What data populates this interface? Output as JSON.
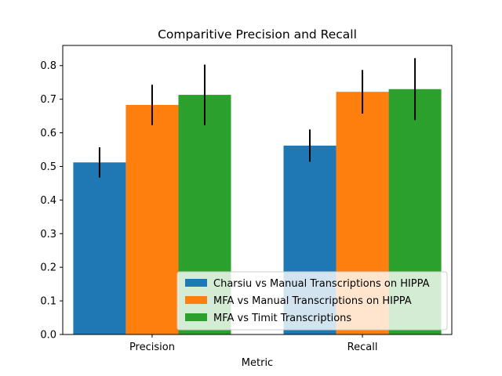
{
  "chart_data": {
    "type": "bar",
    "title": "Comparitive Precision and Recall",
    "xlabel": "Metric",
    "ylabel": "",
    "categories": [
      "Precision",
      "Recall"
    ],
    "ylim": [
      0,
      0.86
    ],
    "yticks": [
      0.0,
      0.1,
      0.2,
      0.3,
      0.4,
      0.5,
      0.6,
      0.7,
      0.8
    ],
    "grid": false,
    "legend_position": "lower-right",
    "series": [
      {
        "name": "Charsiu vs Manual Transcriptions on HIPPA",
        "color": "#1f77b4",
        "values": [
          0.512,
          0.562
        ],
        "errors": [
          0.045,
          0.048
        ]
      },
      {
        "name": "MFA vs Manual Transcriptions on HIPPA",
        "color": "#ff7f0e",
        "values": [
          0.683,
          0.722
        ],
        "errors": [
          0.06,
          0.065
        ]
      },
      {
        "name": "MFA vs Timit Transcriptions",
        "color": "#2ca02c",
        "values": [
          0.713,
          0.73
        ],
        "errors": [
          0.09,
          0.092
        ]
      }
    ]
  }
}
